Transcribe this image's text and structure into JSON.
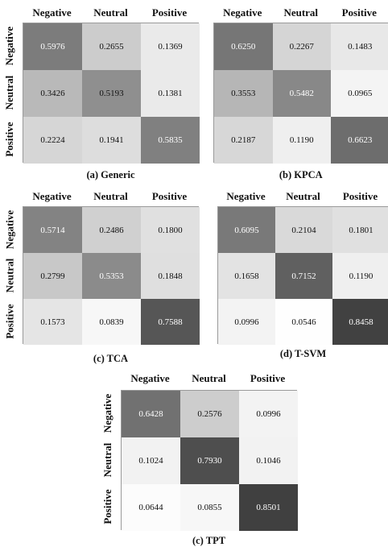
{
  "chart_data": [
    {
      "type": "heatmap",
      "caption": "(a) Generic",
      "x_labels": [
        "Negative",
        "Neutral",
        "Positive"
      ],
      "y_labels": [
        "Negative",
        "Neutral",
        "Positive"
      ],
      "matrix": [
        [
          "0.5976",
          "0.2655",
          "0.1369"
        ],
        [
          "0.3426",
          "0.5193",
          "0.1381"
        ],
        [
          "0.2224",
          "0.1941",
          "0.5835"
        ]
      ]
    },
    {
      "type": "heatmap",
      "caption": "(b) KPCA",
      "x_labels": [
        "Negative",
        "Neutral",
        "Positive"
      ],
      "y_labels": [],
      "matrix": [
        [
          "0.6250",
          "0.2267",
          "0.1483"
        ],
        [
          "0.3553",
          "0.5482",
          "0.0965"
        ],
        [
          "0.2187",
          "0.1190",
          "0.6623"
        ]
      ]
    },
    {
      "type": "heatmap",
      "caption": "(c) TCA",
      "x_labels": [
        "Negative",
        "Neutral",
        "Positive"
      ],
      "y_labels": [
        "Negative",
        "Neutral",
        "Positive"
      ],
      "matrix": [
        [
          "0.5714",
          "0.2486",
          "0.1800"
        ],
        [
          "0.2799",
          "0.5353",
          "0.1848"
        ],
        [
          "0.1573",
          "0.0839",
          "0.7588"
        ]
      ]
    },
    {
      "type": "heatmap",
      "caption": "(d) T-SVM",
      "x_labels": [
        "Negative",
        "Neutral",
        "Positive"
      ],
      "y_labels": [],
      "matrix": [
        [
          "0.6095",
          "0.2104",
          "0.1801"
        ],
        [
          "0.1658",
          "0.7152",
          "0.1190"
        ],
        [
          "0.0996",
          "0.0546",
          "0.8458"
        ]
      ]
    },
    {
      "type": "heatmap",
      "caption": "(c) TPT",
      "x_labels": [
        "Negative",
        "Neutral",
        "Positive"
      ],
      "y_labels": [
        "Negative",
        "Neutral",
        "Positive"
      ],
      "matrix": [
        [
          "0.6428",
          "0.2576",
          "0.0996"
        ],
        [
          "0.1024",
          "0.7930",
          "0.1046"
        ],
        [
          "0.0644",
          "0.0855",
          "0.8501"
        ]
      ]
    }
  ]
}
